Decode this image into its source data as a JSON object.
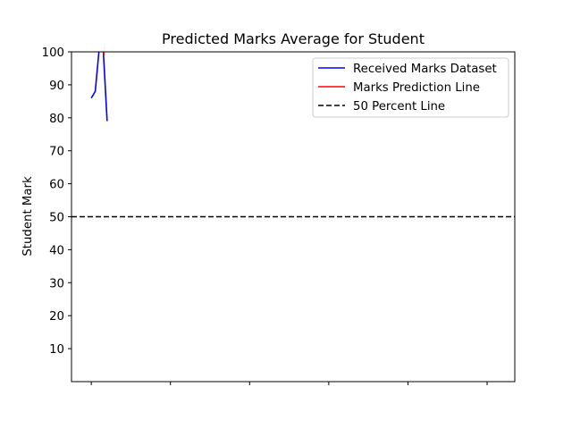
{
  "chart_data": {
    "type": "line",
    "title": "Predicted Marks Average for Student",
    "xlabel": "",
    "ylabel": "Student Mark",
    "xlim": [
      -0.25,
      5.35
    ],
    "ylim": [
      0,
      100
    ],
    "yticks": [
      10,
      20,
      30,
      40,
      50,
      60,
      70,
      80,
      90,
      100
    ],
    "xticks": [
      0,
      1,
      2,
      3,
      4,
      5
    ],
    "xtick_labels_visible": false,
    "grid": false,
    "legend_position": "top-right",
    "series": [
      {
        "name": "Received Marks Dataset",
        "color": "#0000ff",
        "style": "solid",
        "x": [
          0,
          0.05,
          0.1,
          0.15,
          0.2
        ],
        "y": [
          86,
          88,
          101,
          101,
          79
        ]
      },
      {
        "name": "Marks Prediction Line",
        "color": "#ff0000",
        "style": "solid",
        "x": [
          0.15,
          0.16
        ],
        "y": [
          101,
          99
        ]
      },
      {
        "name": "50 Percent Line",
        "color": "#000000",
        "style": "dashed",
        "y_constant": 50
      }
    ]
  }
}
